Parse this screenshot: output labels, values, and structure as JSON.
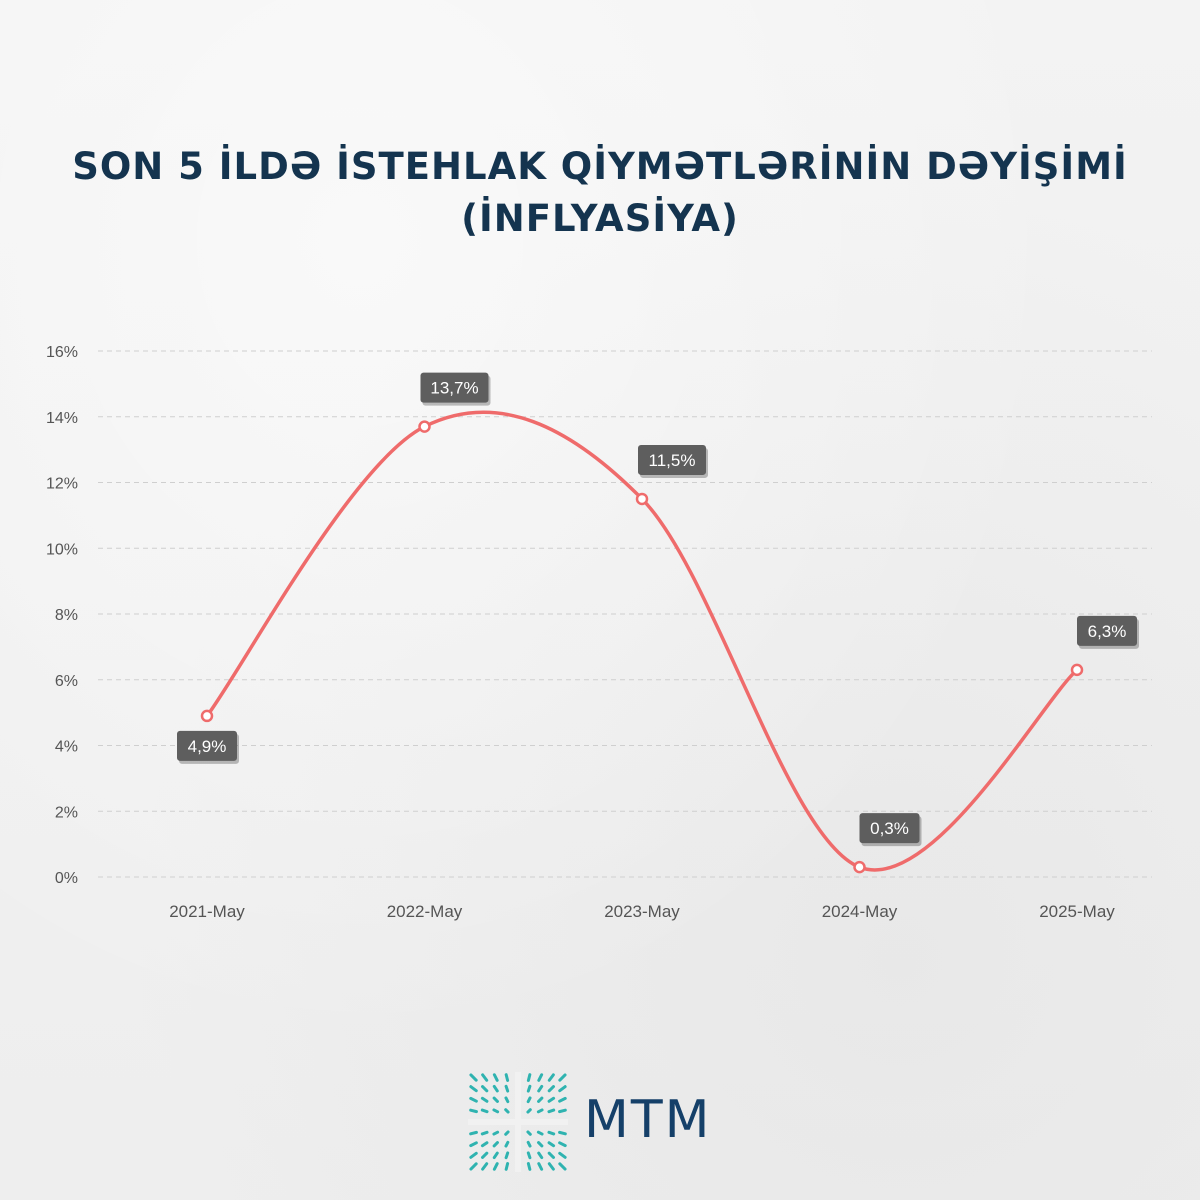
{
  "title_line1": "SON 5 İLDƏ İSTEHLAK QİYMƏTLƏRİNİN DƏYİŞİMİ",
  "title_line2": "(İNFLYASİYA)",
  "logo_text": "MTM",
  "colors": {
    "line": "#ef6b6b",
    "label_bg": "#5e5e5e",
    "title": "#14344f",
    "logo_text": "#154069",
    "logo_mark": "#2fb3b0"
  },
  "chart_data": {
    "type": "line",
    "title": "SON 5 İLDƏ İSTEHLAK QİYMƏTLƏRİNİN DƏYİŞİMİ (İNFLYASİYA)",
    "xlabel": "",
    "ylabel": "",
    "categories": [
      "2021-May",
      "2022-May",
      "2023-May",
      "2024-May",
      "2025-May"
    ],
    "values": [
      4.9,
      13.7,
      11.5,
      0.3,
      6.3
    ],
    "value_labels": [
      "4,9%",
      "13,7%",
      "11,5%",
      "0,3%",
      "6,3%"
    ],
    "label_position": [
      "below",
      "above",
      "above",
      "above",
      "above"
    ],
    "ylim": [
      0,
      16
    ],
    "yticks": [
      "0%",
      "2%",
      "4%",
      "6%",
      "8%",
      "10%",
      "12%",
      "14%",
      "16%"
    ],
    "grid": true,
    "smooth": true
  }
}
